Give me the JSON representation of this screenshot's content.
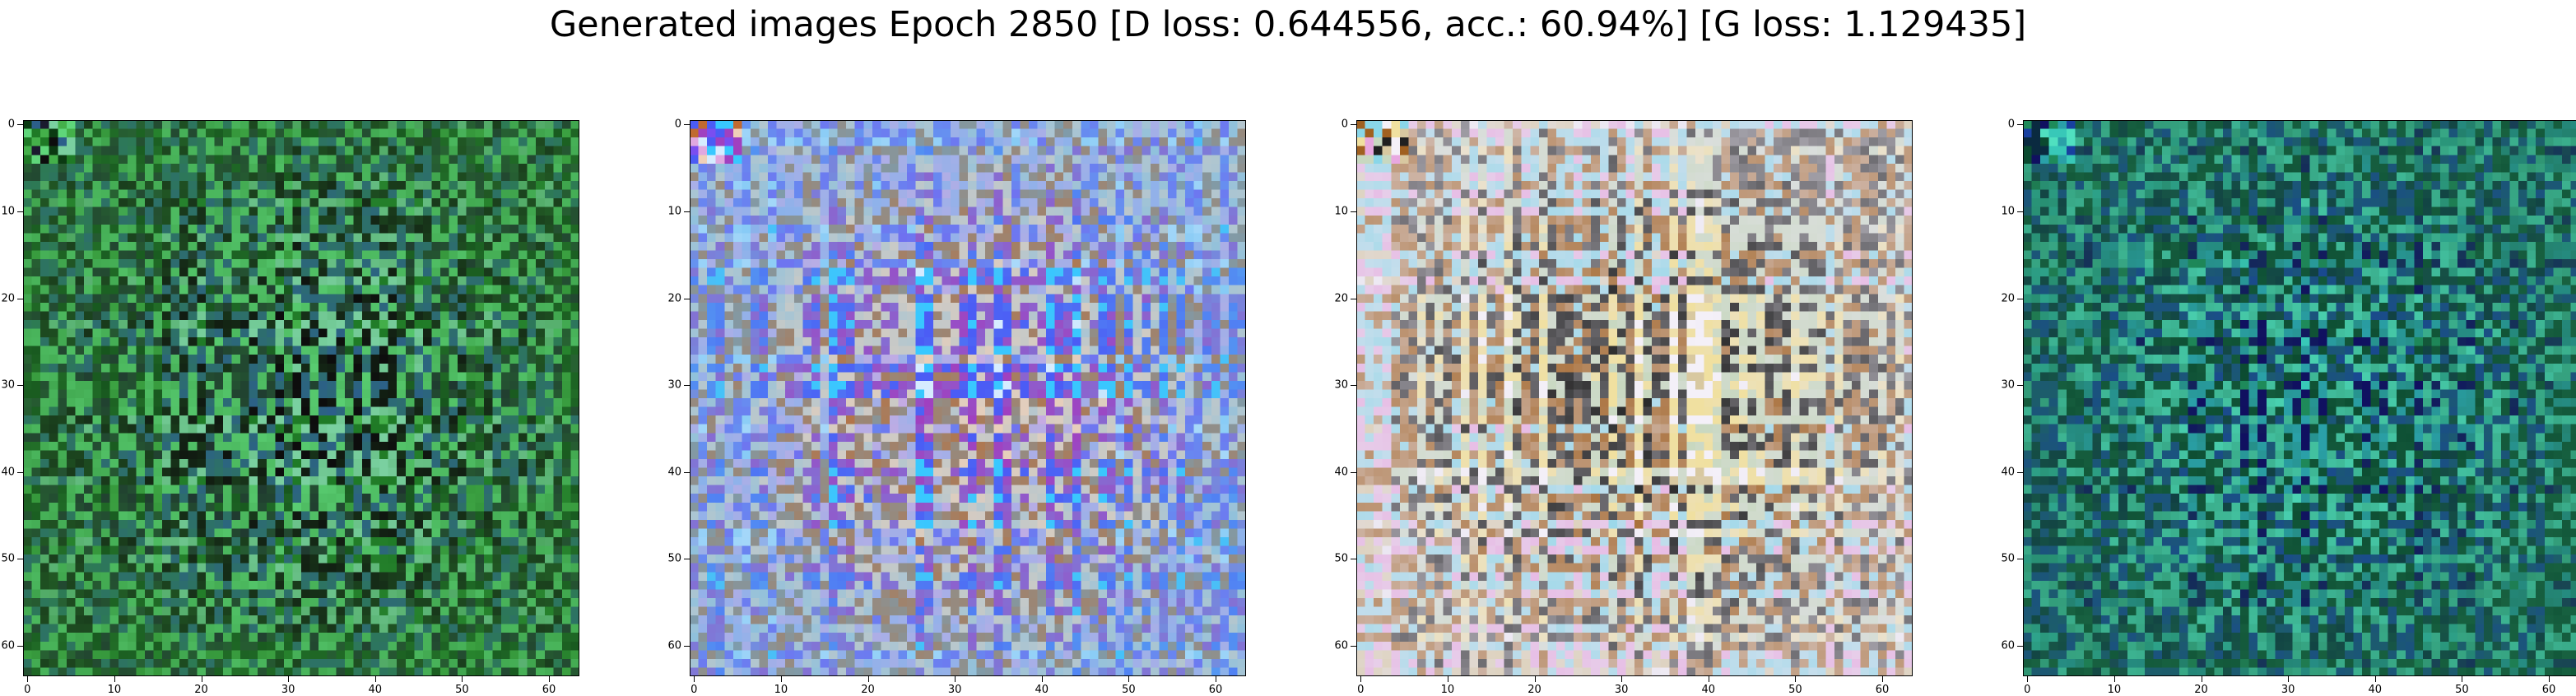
{
  "chart_data": {
    "type": "heatmap",
    "title": "Generated images Epoch 2850 [D loss: 0.644556, acc.: 60.94%] [G loss: 1.129435]",
    "epoch": 2850,
    "d_loss": 0.644556,
    "accuracy_percent": 60.94,
    "g_loss": 1.129435,
    "image_resolution": [
      64,
      64
    ],
    "xlim": [
      0,
      63
    ],
    "ylim": [
      63,
      0
    ],
    "x_ticks": [
      0,
      10,
      20,
      30,
      40,
      50,
      60
    ],
    "y_ticks": [
      0,
      10,
      20,
      30,
      40,
      50,
      60
    ],
    "x_tick_labels": [
      "0",
      "10",
      "20",
      "30",
      "40",
      "50",
      "60"
    ],
    "y_tick_labels": [
      "0",
      "10",
      "20",
      "30",
      "40",
      "50",
      "60"
    ],
    "panels": [
      {
        "name": "generated-image-1",
        "background": "#2e8a34",
        "palette": [
          "#1f7a26",
          "#44b04a",
          "#0b3a12",
          "#1a1a2e",
          "#5fd67a",
          "#2c5f8a",
          "#0d0d0d",
          "#7ad0a0"
        ]
      },
      {
        "name": "generated-image-2",
        "background": "#5ab8f0",
        "palette": [
          "#38c8ff",
          "#d6ecff",
          "#7a4ef0",
          "#e0a8e0",
          "#c06a30",
          "#f0d0b8",
          "#a040c0",
          "#4b5cf5"
        ]
      },
      {
        "name": "generated-image-3",
        "background": "#e6e2ee",
        "palette": [
          "#f4f0f8",
          "#d8c8a0",
          "#e8a8e0",
          "#8ad6e8",
          "#a06020",
          "#202020",
          "#c8d8c0",
          "#f0e0a0"
        ]
      },
      {
        "name": "generated-image-4",
        "background": "#1f6e4a",
        "palette": [
          "#1e8a5a",
          "#38c8b8",
          "#0a2a40",
          "#1840a0",
          "#50e0c0",
          "#0b4a30",
          "#2aa0a8",
          "#101060"
        ]
      }
    ]
  }
}
